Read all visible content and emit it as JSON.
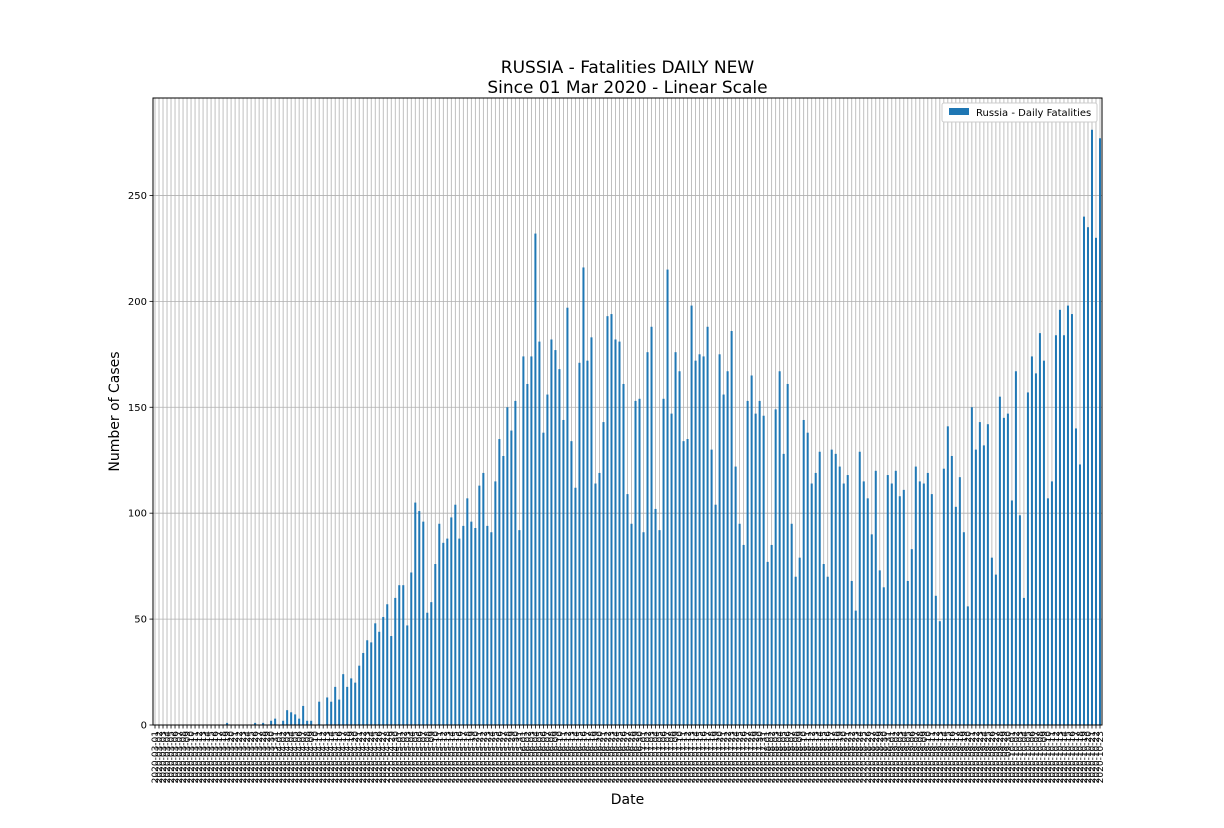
{
  "chart_data": {
    "type": "bar",
    "title": "RUSSIA - Fatalities DAILY NEW",
    "subtitle": "Since 01 Mar 2020 - Linear Scale",
    "xlabel": "Date",
    "ylabel": "Number of Cases",
    "ylim": [
      0,
      296
    ],
    "yticks": [
      0,
      50,
      100,
      150,
      200,
      250
    ],
    "grid": true,
    "legend_position": "top-right",
    "x_start": "2020-03-01",
    "x_end": "2020-10-17",
    "x_tick_every_days": 1,
    "series": [
      {
        "name": "Russia - Daily Fatalities",
        "color": "#1f77b4",
        "values": [
          0,
          0,
          0,
          0,
          0,
          0,
          0,
          0,
          0,
          0,
          0,
          0,
          0,
          0,
          0,
          0,
          0,
          0,
          1,
          0,
          0,
          0,
          0,
          0,
          0,
          1,
          0,
          1,
          0,
          2,
          3,
          0,
          2,
          7,
          6,
          5,
          3,
          9,
          2,
          2,
          0,
          11,
          0,
          13,
          11,
          18,
          12,
          24,
          18,
          22,
          20,
          28,
          34,
          40,
          39,
          48,
          44,
          51,
          57,
          42,
          60,
          66,
          66,
          47,
          72,
          105,
          101,
          96,
          53,
          58,
          76,
          95,
          86,
          88,
          98,
          104,
          88,
          94,
          107,
          96,
          93,
          113,
          119,
          94,
          91,
          115,
          135,
          127,
          150,
          139,
          153,
          92,
          174,
          161,
          174,
          232,
          181,
          138,
          156,
          182,
          177,
          168,
          144,
          197,
          134,
          112,
          171,
          216,
          172,
          183,
          114,
          119,
          143,
          193,
          194,
          182,
          181,
          161,
          109,
          95,
          153,
          154,
          91,
          176,
          188,
          102,
          92,
          154,
          215,
          147,
          176,
          167,
          134,
          135,
          198,
          172,
          175,
          174,
          188,
          130,
          104,
          175,
          156,
          167,
          186,
          122,
          95,
          85,
          153,
          165,
          147,
          153,
          146,
          77,
          85,
          149,
          167,
          128,
          161,
          95,
          70,
          79,
          144,
          138,
          114,
          119,
          129,
          76,
          70,
          130,
          128,
          122,
          114,
          118,
          68,
          54,
          129,
          115,
          107,
          90,
          120,
          73,
          65,
          118,
          114,
          120,
          108,
          111,
          68,
          83,
          122,
          115,
          114,
          119,
          109,
          61,
          49,
          121,
          141,
          127,
          103,
          117,
          91,
          56,
          150,
          130,
          143,
          132,
          142,
          79,
          71,
          155,
          145,
          147,
          106,
          167,
          99,
          60,
          157,
          174,
          166,
          185,
          172,
          107,
          115,
          184,
          196,
          184,
          198,
          194,
          140,
          123,
          240,
          235,
          281,
          230,
          277
        ]
      }
    ]
  }
}
